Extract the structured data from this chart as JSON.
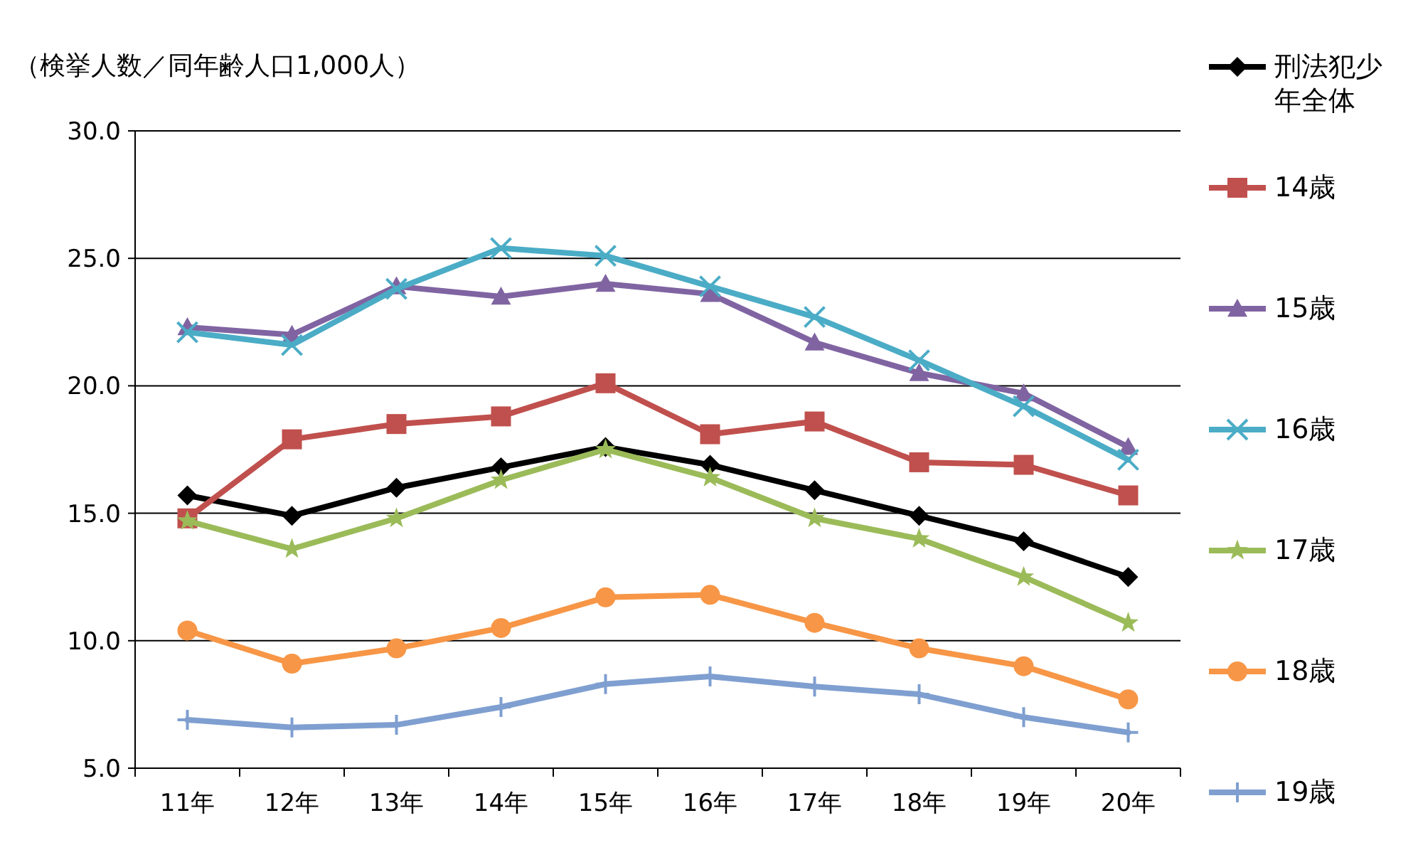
{
  "chart_data": {
    "type": "line",
    "ylabel": "（検挙人数／同年齢人口1,000人）",
    "categories": [
      "11年",
      "12年",
      "13年",
      "14年",
      "15年",
      "16年",
      "17年",
      "18年",
      "19年",
      "20年"
    ],
    "ylim": [
      5,
      30
    ],
    "yticks": [
      {
        "value": 5,
        "label": "5.0"
      },
      {
        "value": 10,
        "label": "10.0"
      },
      {
        "value": 15,
        "label": "15.0"
      },
      {
        "value": 20,
        "label": "20.0"
      },
      {
        "value": 25,
        "label": "25.0"
      },
      {
        "value": 30,
        "label": "30.0"
      }
    ],
    "grid": "y",
    "legend": "right",
    "series": [
      {
        "name": "刑法犯少年全体",
        "color": "#000000",
        "marker": "diamond",
        "values": [
          15.7,
          14.9,
          16.0,
          16.8,
          17.6,
          16.9,
          15.9,
          14.9,
          13.9,
          12.5
        ]
      },
      {
        "name": "14歳",
        "color": "#c0504d",
        "marker": "square",
        "values": [
          14.8,
          17.9,
          18.5,
          18.8,
          20.1,
          18.1,
          18.6,
          17.0,
          16.9,
          15.7
        ]
      },
      {
        "name": "15歳",
        "color": "#8064a2",
        "marker": "triangle",
        "values": [
          22.3,
          22.0,
          23.9,
          23.5,
          24.0,
          23.6,
          21.7,
          20.5,
          19.7,
          17.6
        ]
      },
      {
        "name": "16歳",
        "color": "#4bacc6",
        "marker": "cross",
        "values": [
          22.1,
          21.6,
          23.8,
          25.4,
          25.1,
          23.9,
          22.7,
          21.0,
          19.2,
          17.1
        ]
      },
      {
        "name": "17歳",
        "color": "#9bbb59",
        "marker": "star",
        "values": [
          14.7,
          13.6,
          14.8,
          16.3,
          17.5,
          16.4,
          14.8,
          14.0,
          12.5,
          10.7
        ]
      },
      {
        "name": "18歳",
        "color": "#f79646",
        "marker": "circle",
        "values": [
          10.4,
          9.1,
          9.7,
          10.5,
          11.7,
          11.8,
          10.7,
          9.7,
          9.0,
          7.7
        ]
      },
      {
        "name": "19歳",
        "color": "#7f9fd0",
        "marker": "plus",
        "values": [
          6.9,
          6.6,
          6.7,
          7.4,
          8.3,
          8.6,
          8.2,
          7.9,
          7.0,
          6.4
        ]
      }
    ]
  }
}
